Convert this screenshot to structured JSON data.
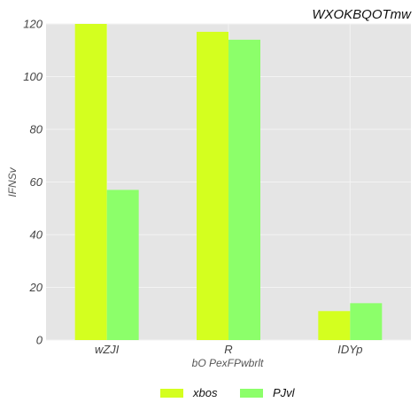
{
  "chart_data": {
    "type": "bar",
    "title": "WXOKBQOTmw",
    "xlabel": "bO PexFPwbrlt",
    "ylabel": "IFNSv",
    "categories": [
      "wZJI",
      "R",
      "IDYp"
    ],
    "ylim": [
      0,
      120
    ],
    "yticks": [
      0,
      20,
      40,
      60,
      80,
      100,
      120
    ],
    "grid": true,
    "legend_position": "bottom-center",
    "series": [
      {
        "name": "xbos",
        "values": [
          120,
          117,
          11
        ],
        "color": "#d4ff1f"
      },
      {
        "name": "PJvl",
        "values": [
          57,
          114,
          14
        ],
        "color": "#8cff6a"
      }
    ],
    "colors": {
      "plot_background": "#e5e5e5",
      "grid": "#f3f3f3"
    }
  }
}
